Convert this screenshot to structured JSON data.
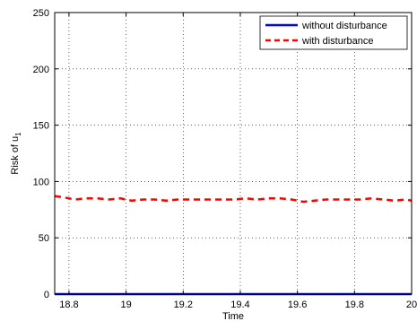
{
  "chart_data": {
    "type": "line",
    "title": "",
    "xlabel": "Time",
    "ylabel": "Risk of u",
    "ylabel_subscript": "1",
    "xlim": [
      18.75,
      20.0
    ],
    "ylim": [
      0,
      250
    ],
    "xticks": [
      18.8,
      19,
      19.2,
      19.4,
      19.6,
      19.8,
      20
    ],
    "xtick_labels": [
      "18.8",
      "19",
      "19.2",
      "19.4",
      "19.6",
      "19.8",
      "20"
    ],
    "yticks": [
      0,
      50,
      100,
      150,
      200,
      250
    ],
    "ytick_labels": [
      "0",
      "50",
      "100",
      "150",
      "200",
      "250"
    ],
    "grid": true,
    "legend_position": "top-right",
    "series": [
      {
        "name": "without disturbance",
        "color": "#0000ff",
        "style": "solid",
        "x": [
          18.75,
          20.0
        ],
        "y": [
          0,
          0
        ]
      },
      {
        "name": "with disturbance",
        "color": "#ff0000",
        "style": "dashed",
        "x": [
          18.75,
          18.78,
          18.82,
          18.86,
          18.9,
          18.94,
          18.98,
          19.02,
          19.06,
          19.1,
          19.14,
          19.18,
          19.22,
          19.26,
          19.3,
          19.34,
          19.38,
          19.42,
          19.46,
          19.5,
          19.54,
          19.58,
          19.62,
          19.66,
          19.7,
          19.74,
          19.78,
          19.82,
          19.86,
          19.9,
          19.94,
          19.98,
          20.0
        ],
        "y": [
          87,
          86,
          84,
          85,
          85,
          84,
          85,
          83,
          84,
          84,
          83,
          84,
          84,
          84,
          84,
          84,
          84,
          85,
          84,
          85,
          85,
          84,
          82,
          83,
          84,
          84,
          84,
          84,
          85,
          84,
          83,
          84,
          83
        ]
      }
    ]
  }
}
